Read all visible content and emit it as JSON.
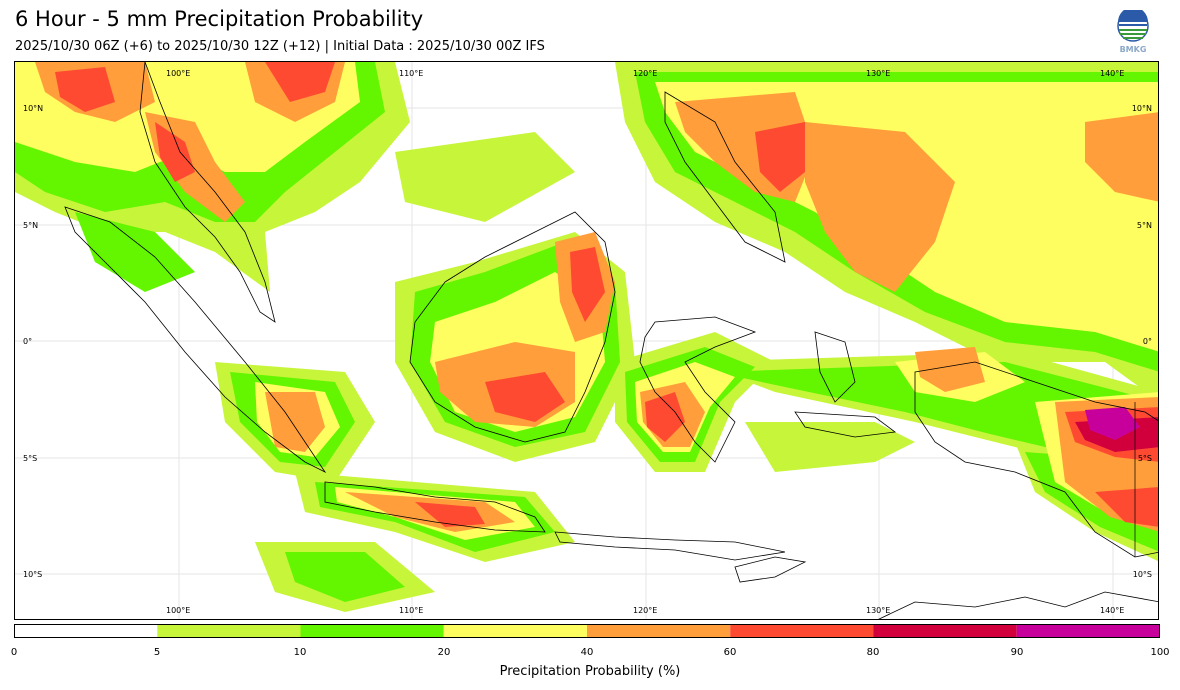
{
  "header": {
    "title": "6 Hour - 5 mm Precipitation Probability",
    "subtitle": "2025/10/30 06Z (+6) to 2025/10/30 12Z (+12) | Initial Data : 2025/10/30 00Z IFS",
    "logo_text": "BMKG"
  },
  "map": {
    "lon_labels": [
      "100°E",
      "110°E",
      "120°E",
      "130°E",
      "140°E"
    ],
    "lat_labels": [
      "10°N",
      "5°N",
      "0°",
      "5°S",
      "10°S"
    ],
    "land_color": "#ffffff",
    "coast_color": "#000000"
  },
  "colorbar": {
    "label": "Precipitation Probability (%)",
    "ticks": [
      "0",
      "5",
      "10",
      "20",
      "40",
      "60",
      "80",
      "90",
      "100"
    ],
    "colors": [
      "#ffffff",
      "#c6f53a",
      "#64f500",
      "#fffe60",
      "#ff9e3a",
      "#ff4a32",
      "#d1003c",
      "#c8009b"
    ]
  }
}
